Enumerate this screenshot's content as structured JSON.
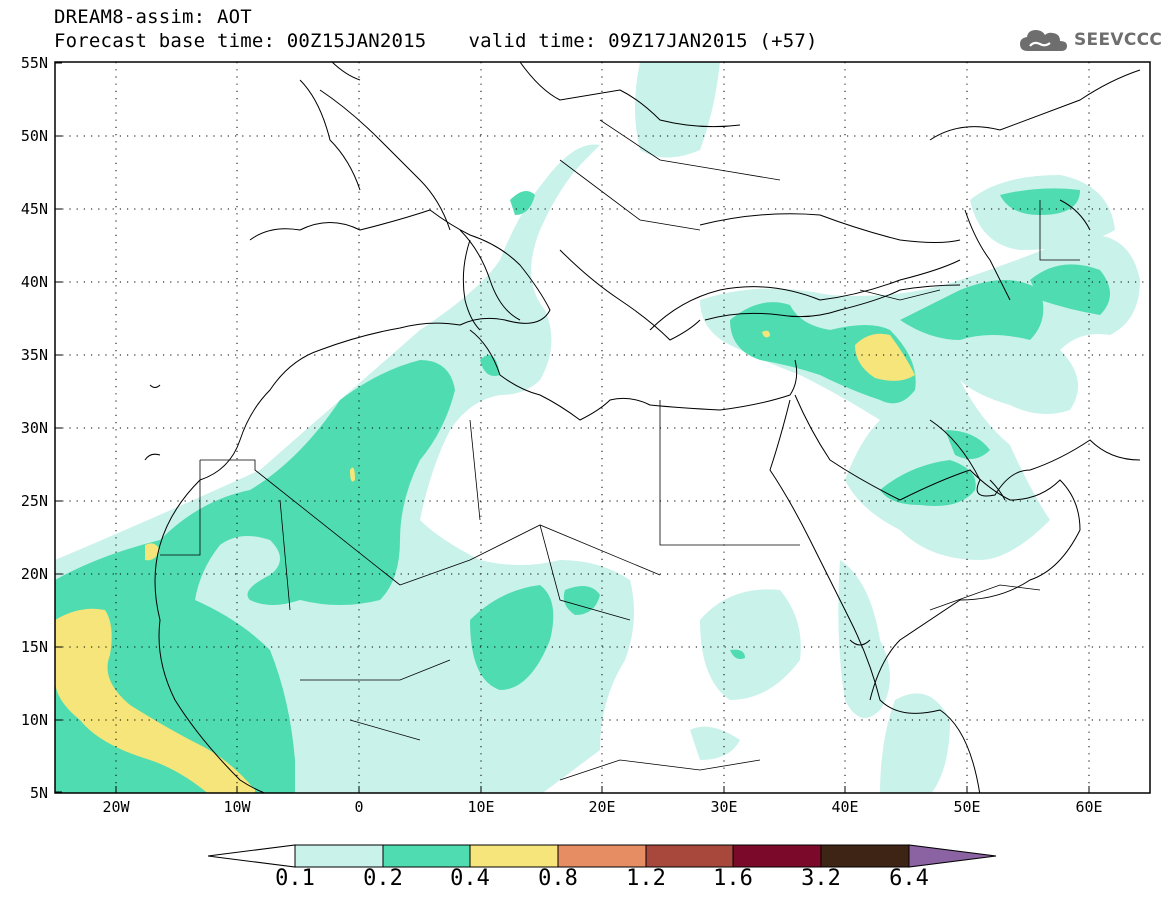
{
  "header": {
    "line1": "DREAM8-assim: AOT",
    "base_time": "Forecast base time: 00Z15JAN2015",
    "valid_time": "valid time: 09Z17JAN2015 (+57)"
  },
  "logo": {
    "text": "SEEVCCC",
    "icon": "cloud-icon",
    "color": "#6e6e6e"
  },
  "axes": {
    "lat_labels": [
      "55N",
      "50N",
      "45N",
      "40N",
      "35N",
      "30N",
      "25N",
      "20N",
      "15N",
      "10N",
      "5N"
    ],
    "lon_labels": [
      "20W",
      "10W",
      "0",
      "10E",
      "20E",
      "30E",
      "40E",
      "50E",
      "60E"
    ],
    "lat_range": [
      5,
      55
    ],
    "lon_range": [
      -25,
      65
    ]
  },
  "colorbar": {
    "labels": [
      "0.1",
      "0.2",
      "0.4",
      "0.8",
      "1.2",
      "1.6",
      "3.2",
      "6.4"
    ],
    "colors": [
      "#ffffff",
      "#c9f2ea",
      "#50dcb1",
      "#f5e57a",
      "#e68d63",
      "#a8473b",
      "#7b0a2a",
      "#3d2414",
      "#8b63a3"
    ]
  },
  "map": {
    "grid": "dotted",
    "field_colors": {
      "light": "#c9f2ea",
      "medium": "#50dcb1",
      "high": "#f5e57a"
    }
  }
}
